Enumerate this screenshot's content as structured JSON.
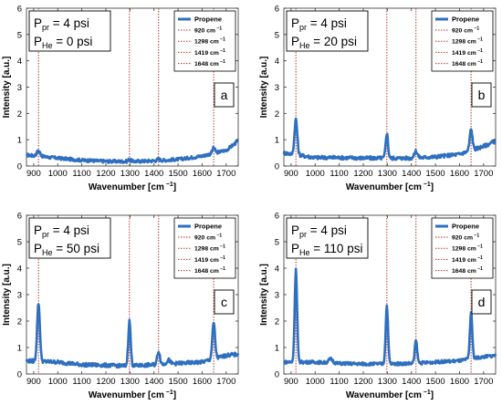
{
  "chart_data": [
    {
      "type": "line",
      "panel_label": "a",
      "conditions": {
        "pr_label": "P",
        "pr_sub": "pr",
        "pr_value": " = 4 psi",
        "he_label": "P",
        "he_sub": "He",
        "he_value": " = 0 psi"
      },
      "xlabel": "Wavenumber [cm",
      "xlabel_sup": "−1",
      "xlabel_end": "]",
      "ylabel": "Intensity [a.u.]",
      "xlim": [
        870,
        1750
      ],
      "ylim": [
        0,
        6
      ],
      "xticks": [
        900,
        1000,
        1100,
        1200,
        1300,
        1400,
        1500,
        1600,
        1700
      ],
      "yticks": [
        0,
        1,
        2,
        3,
        4,
        5,
        6
      ],
      "legend": {
        "placement": "top-right",
        "series_name": "Propene",
        "line_labels": [
          "920 cm",
          "1298 cm",
          "1419 cm",
          "1648 cm"
        ],
        "line_label_sup": "−1"
      },
      "reference_lines": [
        920,
        1298,
        1419,
        1648
      ],
      "series": [
        {
          "name": "Propene",
          "baseline": [
            [
              870,
              0.42
            ],
            [
              1000,
              0.3
            ],
            [
              1100,
              0.22
            ],
            [
              1200,
              0.18
            ],
            [
              1300,
              0.17
            ],
            [
              1400,
              0.2
            ],
            [
              1500,
              0.25
            ],
            [
              1600,
              0.38
            ],
            [
              1700,
              0.6
            ],
            [
              1750,
              0.95
            ]
          ],
          "peaks": [
            [
              920,
              0.2,
              10
            ],
            [
              1298,
              0.08,
              8
            ],
            [
              1419,
              0.05,
              8
            ],
            [
              1648,
              0.2,
              8
            ]
          ],
          "noise": 0.06
        }
      ]
    },
    {
      "type": "line",
      "panel_label": "b",
      "conditions": {
        "pr_label": "P",
        "pr_sub": "pr",
        "pr_value": " = 4 psi",
        "he_label": "P",
        "he_sub": "He",
        "he_value": " = 20 psi"
      },
      "xlabel": "Wavenumber [cm",
      "xlabel_sup": "−1",
      "xlabel_end": "]",
      "ylabel": "Intensity [a.u.]",
      "xlim": [
        870,
        1750
      ],
      "ylim": [
        0,
        6
      ],
      "xticks": [
        900,
        1000,
        1100,
        1200,
        1300,
        1400,
        1500,
        1600,
        1700
      ],
      "yticks": [
        0,
        1,
        2,
        3,
        4,
        5,
        6
      ],
      "legend": {
        "placement": "top-right",
        "series_name": "Propene",
        "line_labels": [
          "920 cm",
          "1298 cm",
          "1419 cm",
          "1648 cm"
        ],
        "line_label_sup": "−1"
      },
      "reference_lines": [
        920,
        1298,
        1419,
        1648
      ],
      "series": [
        {
          "name": "Propene",
          "baseline": [
            [
              870,
              0.5
            ],
            [
              1000,
              0.32
            ],
            [
              1100,
              0.32
            ],
            [
              1200,
              0.3
            ],
            [
              1300,
              0.3
            ],
            [
              1400,
              0.3
            ],
            [
              1500,
              0.35
            ],
            [
              1600,
              0.45
            ],
            [
              1700,
              0.75
            ],
            [
              1750,
              0.95
            ]
          ],
          "peaks": [
            [
              920,
              1.35,
              8
            ],
            [
              1298,
              0.95,
              7
            ],
            [
              1419,
              0.25,
              9
            ],
            [
              1648,
              0.8,
              8
            ]
          ],
          "noise": 0.07
        }
      ]
    },
    {
      "type": "line",
      "panel_label": "c",
      "conditions": {
        "pr_label": "P",
        "pr_sub": "pr",
        "pr_value": " = 4 psi",
        "he_label": "P",
        "he_sub": "He",
        "he_value": " = 50 psi"
      },
      "xlabel": "Wavenumber [cm",
      "xlabel_sup": "−1",
      "xlabel_end": "]",
      "ylabel": "Intensity [a.u.]",
      "xlim": [
        870,
        1750
      ],
      "ylim": [
        0,
        6
      ],
      "xticks": [
        900,
        1000,
        1100,
        1200,
        1300,
        1400,
        1500,
        1600,
        1700
      ],
      "yticks": [
        0,
        1,
        2,
        3,
        4,
        5,
        6
      ],
      "legend": {
        "placement": "top-right",
        "series_name": "Propene",
        "line_labels": [
          "920 cm",
          "1298 cm",
          "1419 cm",
          "1648 cm"
        ],
        "line_label_sup": "−1"
      },
      "reference_lines": [
        920,
        1298,
        1419,
        1648
      ],
      "series": [
        {
          "name": "Propene",
          "baseline": [
            [
              870,
              0.5
            ],
            [
              1000,
              0.45
            ],
            [
              1100,
              0.35
            ],
            [
              1200,
              0.33
            ],
            [
              1300,
              0.3
            ],
            [
              1400,
              0.35
            ],
            [
              1500,
              0.4
            ],
            [
              1600,
              0.45
            ],
            [
              1700,
              0.7
            ],
            [
              1750,
              0.75
            ]
          ],
          "peaks": [
            [
              920,
              2.2,
              8
            ],
            [
              1298,
              1.7,
              7
            ],
            [
              1419,
              0.5,
              8
            ],
            [
              1460,
              0.15,
              10
            ],
            [
              1648,
              1.35,
              8
            ]
          ],
          "noise": 0.07
        }
      ]
    },
    {
      "type": "line",
      "panel_label": "d",
      "conditions": {
        "pr_label": "P",
        "pr_sub": "pr",
        "pr_value": " = 4 psi",
        "he_label": "P",
        "he_sub": "He",
        "he_value": " = 110 psi"
      },
      "xlabel": "Wavenumber [cm",
      "xlabel_sup": "−1",
      "xlabel_end": "]",
      "ylabel": "Intensity [a.u.]",
      "xlim": [
        870,
        1750
      ],
      "ylim": [
        0,
        6
      ],
      "xticks": [
        900,
        1000,
        1100,
        1200,
        1300,
        1400,
        1500,
        1600,
        1700
      ],
      "yticks": [
        0,
        1,
        2,
        3,
        4,
        5,
        6
      ],
      "legend": {
        "placement": "top-right",
        "series_name": "Propene",
        "line_labels": [
          "920 cm",
          "1298 cm",
          "1419 cm",
          "1648 cm"
        ],
        "line_label_sup": "−1"
      },
      "reference_lines": [
        920,
        1298,
        1419,
        1648
      ],
      "series": [
        {
          "name": "Propene",
          "baseline": [
            [
              870,
              0.45
            ],
            [
              1000,
              0.45
            ],
            [
              1100,
              0.4
            ],
            [
              1200,
              0.38
            ],
            [
              1300,
              0.38
            ],
            [
              1400,
              0.4
            ],
            [
              1500,
              0.45
            ],
            [
              1600,
              0.5
            ],
            [
              1700,
              0.65
            ],
            [
              1750,
              0.7
            ]
          ],
          "peaks": [
            [
              920,
              3.5,
              7
            ],
            [
              1298,
              2.2,
              7
            ],
            [
              1419,
              0.85,
              7
            ],
            [
              1648,
              1.75,
              7
            ],
            [
              1065,
              0.15,
              12
            ]
          ],
          "noise": 0.06
        }
      ]
    }
  ],
  "colors": {
    "series": "#2e6fc0",
    "reference_line": "#b5372a",
    "axis": "#333333",
    "text": "#000000"
  }
}
